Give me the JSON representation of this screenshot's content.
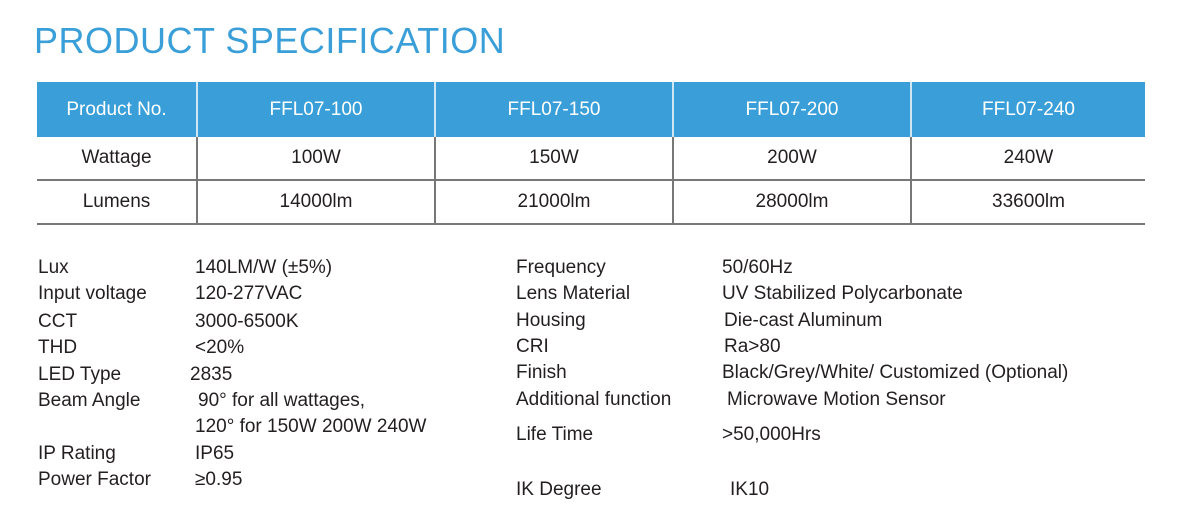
{
  "title": "PRODUCT SPECIFICATION",
  "accent": "#3a9fd8",
  "table": {
    "headers": [
      "Product No.",
      "FFL07-100",
      "FFL07-150",
      "FFL07-200",
      "FFL07-240"
    ],
    "rows": [
      [
        "Wattage",
        "100W",
        "150W",
        "200W",
        "240W"
      ],
      [
        "Lumens",
        "14000lm",
        "21000lm",
        "28000lm",
        "33600lm"
      ]
    ]
  },
  "specs_left": [
    {
      "label": "Lux",
      "value": "140LM/W (±5%)"
    },
    {
      "label": "Input voltage",
      "value": "120-277VAC"
    },
    {
      "label": "CCT",
      "value": "3000-6500K"
    },
    {
      "label": "THD",
      "value": "<20%"
    },
    {
      "label": "LED Type",
      "value": "2835"
    },
    {
      "label": "Beam Angle",
      "value": "90° for all wattages,",
      "value2": "120° for 150W 200W 240W"
    },
    {
      "label": "IP Rating",
      "value": "IP65"
    },
    {
      "label": "Power Factor",
      "value": "≥0.95"
    }
  ],
  "specs_right": [
    {
      "label": "Frequency",
      "value": "50/60Hz"
    },
    {
      "label": "Lens Material",
      "value": "UV Stabilized Polycarbonate"
    },
    {
      "label": "Housing",
      "value": "Die-cast Aluminum"
    },
    {
      "label": "CRI",
      "value": "Ra>80"
    },
    {
      "label": "Finish",
      "value": "Black/Grey/White/ Customized (Optional)"
    },
    {
      "label": "Additional function",
      "value": "Microwave Motion Sensor"
    },
    {
      "label": "Life Time",
      "value": ">50,000Hrs"
    },
    {
      "label": "IK Degree",
      "value": "IK10"
    }
  ]
}
